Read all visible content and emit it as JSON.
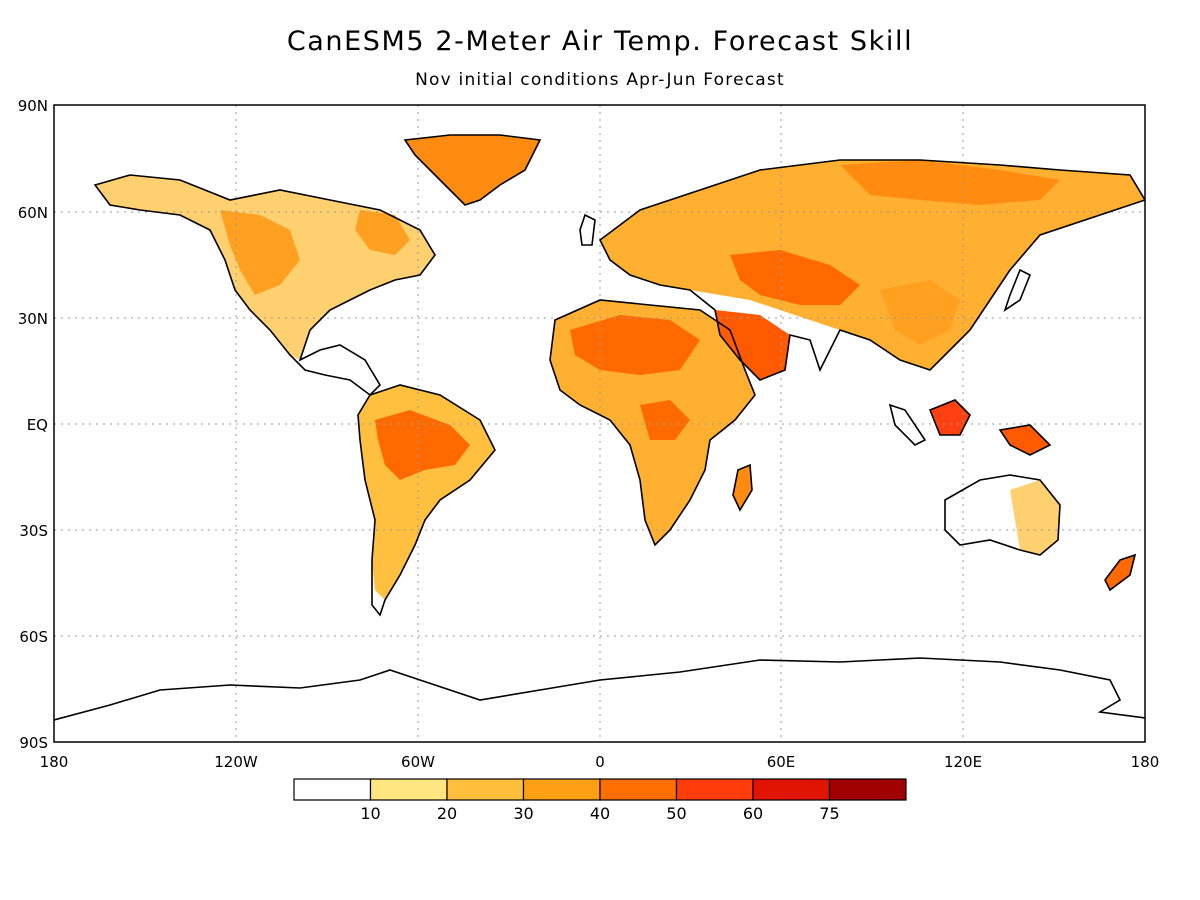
{
  "title": "CanESM5 2-Meter Air Temp. Forecast Skill",
  "subtitle": "Nov initial conditions  Apr-Jun Forecast",
  "lat_labels": [
    "90N",
    "60N",
    "30N",
    "EQ",
    "30S",
    "60S",
    "90S"
  ],
  "lon_labels": [
    "180",
    "120W",
    "60W",
    "0",
    "60E",
    "120E",
    "180"
  ],
  "colorbar": {
    "boundaries": [
      "10",
      "20",
      "30",
      "40",
      "50",
      "60",
      "75"
    ],
    "colors": [
      "#ffffff",
      "#ffe680",
      "#ffbe3c",
      "#ffa014",
      "#ff6e00",
      "#ff3c0a",
      "#e01400",
      "#a00000"
    ]
  },
  "colors": {
    "land": "#ffffff",
    "coast": "#000000",
    "grid": "#9a9a9a"
  }
}
